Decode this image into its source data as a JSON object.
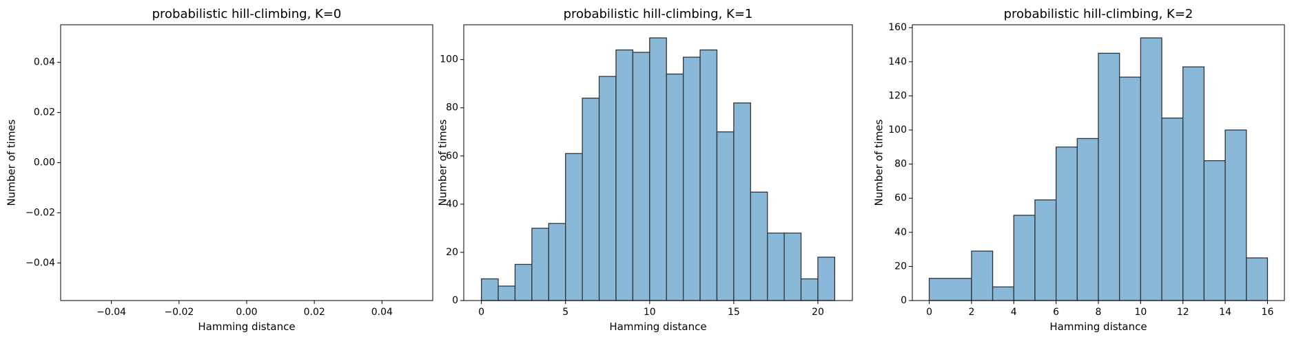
{
  "figure": {
    "background": "#ffffff"
  },
  "chart_data": [
    {
      "type": "bar",
      "title": "probabilistic hill-climbing, K=0",
      "xlabel": "Hamming distance",
      "ylabel": "Number of times",
      "xlim": [
        -0.055,
        0.055
      ],
      "ylim": [
        -0.055,
        0.055
      ],
      "xticks": [
        -0.04,
        -0.02,
        0.0,
        0.02,
        0.04
      ],
      "xtick_labels": [
        "−0.04",
        "−0.02",
        "0.00",
        "0.02",
        "0.04"
      ],
      "yticks": [
        -0.04,
        -0.02,
        0.0,
        0.02,
        0.04
      ],
      "ytick_labels": [
        "−0.04",
        "−0.02",
        "0.00",
        "0.02",
        "0.04"
      ],
      "bins": [],
      "grid": false,
      "color": "#8ab8d9",
      "edge_color": "#333333"
    },
    {
      "type": "bar",
      "title": "probabilistic hill-climbing, K=1",
      "xlabel": "Hamming distance",
      "ylabel": "Number of times",
      "xlim": [
        -1.05,
        22.05
      ],
      "ylim": [
        0,
        114.45
      ],
      "xticks": [
        0,
        5,
        10,
        15,
        20
      ],
      "xtick_labels": [
        "0",
        "5",
        "10",
        "15",
        "20"
      ],
      "yticks": [
        0,
        20,
        40,
        60,
        80,
        100
      ],
      "ytick_labels": [
        "0",
        "20",
        "40",
        "60",
        "80",
        "100"
      ],
      "bins": [
        {
          "x0": 0,
          "x1": 1,
          "value": 9
        },
        {
          "x0": 1,
          "x1": 2,
          "value": 6
        },
        {
          "x0": 2,
          "x1": 3,
          "value": 15
        },
        {
          "x0": 3,
          "x1": 4,
          "value": 30
        },
        {
          "x0": 4,
          "x1": 5,
          "value": 32
        },
        {
          "x0": 5,
          "x1": 6,
          "value": 61
        },
        {
          "x0": 6,
          "x1": 7,
          "value": 84
        },
        {
          "x0": 7,
          "x1": 8,
          "value": 93
        },
        {
          "x0": 8,
          "x1": 9,
          "value": 104
        },
        {
          "x0": 9,
          "x1": 10,
          "value": 103
        },
        {
          "x0": 10,
          "x1": 11,
          "value": 109
        },
        {
          "x0": 11,
          "x1": 12,
          "value": 94
        },
        {
          "x0": 12,
          "x1": 13,
          "value": 101
        },
        {
          "x0": 13,
          "x1": 14,
          "value": 104
        },
        {
          "x0": 14,
          "x1": 15,
          "value": 70
        },
        {
          "x0": 15,
          "x1": 16,
          "value": 82
        },
        {
          "x0": 16,
          "x1": 17,
          "value": 45
        },
        {
          "x0": 17,
          "x1": 18,
          "value": 28
        },
        {
          "x0": 18,
          "x1": 19,
          "value": 28
        },
        {
          "x0": 19,
          "x1": 20,
          "value": 9
        },
        {
          "x0": 20,
          "x1": 21,
          "value": 18
        }
      ],
      "grid": false,
      "color": "#8ab8d9",
      "edge_color": "#333333"
    },
    {
      "type": "bar",
      "title": "probabilistic hill-climbing, K=2",
      "xlabel": "Hamming distance",
      "ylabel": "Number of times",
      "xlim": [
        -0.8,
        16.8
      ],
      "ylim": [
        0,
        161.7
      ],
      "xticks": [
        0,
        2,
        4,
        6,
        8,
        10,
        12,
        14,
        16
      ],
      "xtick_labels": [
        "0",
        "2",
        "4",
        "6",
        "8",
        "10",
        "12",
        "14",
        "16"
      ],
      "yticks": [
        0,
        20,
        40,
        60,
        80,
        100,
        120,
        140,
        160
      ],
      "ytick_labels": [
        "0",
        "20",
        "40",
        "60",
        "80",
        "100",
        "120",
        "140",
        "160"
      ],
      "bins": [
        {
          "x0": 0,
          "x1": 2,
          "value": 13
        },
        {
          "x0": 2,
          "x1": 3,
          "value": 29
        },
        {
          "x0": 3,
          "x1": 4,
          "value": 8
        },
        {
          "x0": 4,
          "x1": 5,
          "value": 50
        },
        {
          "x0": 5,
          "x1": 6,
          "value": 59
        },
        {
          "x0": 6,
          "x1": 7,
          "value": 90
        },
        {
          "x0": 7,
          "x1": 8,
          "value": 95
        },
        {
          "x0": 8,
          "x1": 9,
          "value": 145
        },
        {
          "x0": 9,
          "x1": 10,
          "value": 131
        },
        {
          "x0": 10,
          "x1": 11,
          "value": 154
        },
        {
          "x0": 11,
          "x1": 12,
          "value": 107
        },
        {
          "x0": 12,
          "x1": 13,
          "value": 137
        },
        {
          "x0": 13,
          "x1": 14,
          "value": 82
        },
        {
          "x0": 14,
          "x1": 15,
          "value": 100
        },
        {
          "x0": 15,
          "x1": 16,
          "value": 25
        }
      ],
      "grid": false,
      "color": "#8ab8d9",
      "edge_color": "#333333"
    }
  ]
}
